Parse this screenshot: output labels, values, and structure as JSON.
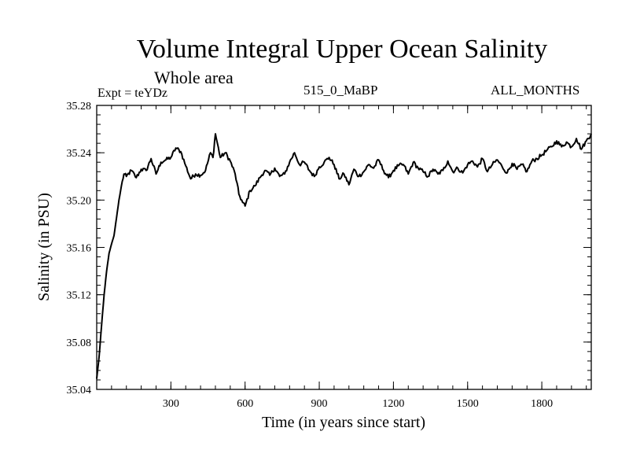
{
  "title": "Volume Integral Upper Ocean Salinity",
  "subtitle": "Whole area",
  "expt_label": "Expt = teYDz",
  "run_label": "515_0_MaBP",
  "months_label": "ALL_MONTHS",
  "chart_data": {
    "type": "line",
    "title": "Volume Integral Upper Ocean Salinity",
    "xlabel": "Time (in years since start)",
    "ylabel": "Salinity (in PSU)",
    "xlim": [
      0,
      2000
    ],
    "ylim": [
      35.04,
      35.28
    ],
    "xticks": [
      300,
      600,
      900,
      1200,
      1500,
      1800
    ],
    "xtick_labels": [
      "300",
      "600",
      "900",
      "1200",
      "1500",
      "1800"
    ],
    "yticks": [
      35.04,
      35.08,
      35.12,
      35.16,
      35.2,
      35.24,
      35.28
    ],
    "ytick_labels": [
      "35.04",
      "35.08",
      "35.12",
      "35.16",
      "35.20",
      "35.24",
      "35.28"
    ],
    "grid": false,
    "series": [
      {
        "name": "Salinity",
        "x": [
          0,
          10,
          20,
          30,
          40,
          50,
          60,
          70,
          80,
          90,
          100,
          110,
          120,
          140,
          160,
          180,
          200,
          220,
          240,
          260,
          280,
          300,
          320,
          340,
          360,
          380,
          400,
          420,
          440,
          460,
          470,
          480,
          500,
          520,
          540,
          560,
          575,
          590,
          600,
          620,
          640,
          660,
          680,
          700,
          720,
          740,
          760,
          780,
          800,
          820,
          840,
          860,
          880,
          900,
          920,
          940,
          960,
          980,
          1000,
          1020,
          1040,
          1060,
          1080,
          1100,
          1120,
          1140,
          1160,
          1180,
          1200,
          1220,
          1240,
          1260,
          1280,
          1300,
          1320,
          1340,
          1360,
          1380,
          1400,
          1420,
          1440,
          1460,
          1480,
          1500,
          1520,
          1540,
          1560,
          1580,
          1600,
          1620,
          1640,
          1660,
          1680,
          1700,
          1720,
          1740,
          1760,
          1780,
          1800,
          1820,
          1840,
          1860,
          1880,
          1900,
          1920,
          1940,
          1960,
          1980,
          2000
        ],
        "values": [
          35.049,
          35.068,
          35.095,
          35.12,
          35.14,
          35.155,
          35.163,
          35.17,
          35.185,
          35.2,
          35.212,
          35.222,
          35.22,
          35.225,
          35.219,
          35.226,
          35.225,
          35.235,
          35.222,
          35.232,
          35.234,
          35.236,
          35.244,
          35.241,
          35.229,
          35.218,
          35.222,
          35.221,
          35.225,
          35.24,
          35.236,
          35.256,
          35.236,
          35.24,
          35.233,
          35.222,
          35.205,
          35.198,
          35.195,
          35.208,
          35.212,
          35.219,
          35.225,
          35.221,
          35.227,
          35.22,
          35.222,
          35.232,
          35.24,
          35.23,
          35.232,
          35.225,
          35.22,
          35.228,
          35.232,
          35.236,
          35.23,
          35.218,
          35.222,
          35.213,
          35.226,
          35.22,
          35.224,
          35.23,
          35.227,
          35.234,
          35.225,
          35.219,
          35.225,
          35.229,
          35.23,
          35.222,
          35.232,
          35.227,
          35.224,
          35.22,
          35.226,
          35.222,
          35.225,
          35.233,
          35.224,
          35.227,
          35.223,
          35.23,
          35.233,
          35.228,
          35.235,
          35.224,
          35.23,
          35.234,
          35.228,
          35.223,
          35.231,
          35.226,
          35.23,
          35.224,
          35.233,
          35.235,
          35.238,
          35.242,
          35.245,
          35.25,
          35.245,
          35.249,
          35.245,
          35.252,
          35.243,
          35.25,
          35.256
        ]
      }
    ]
  }
}
